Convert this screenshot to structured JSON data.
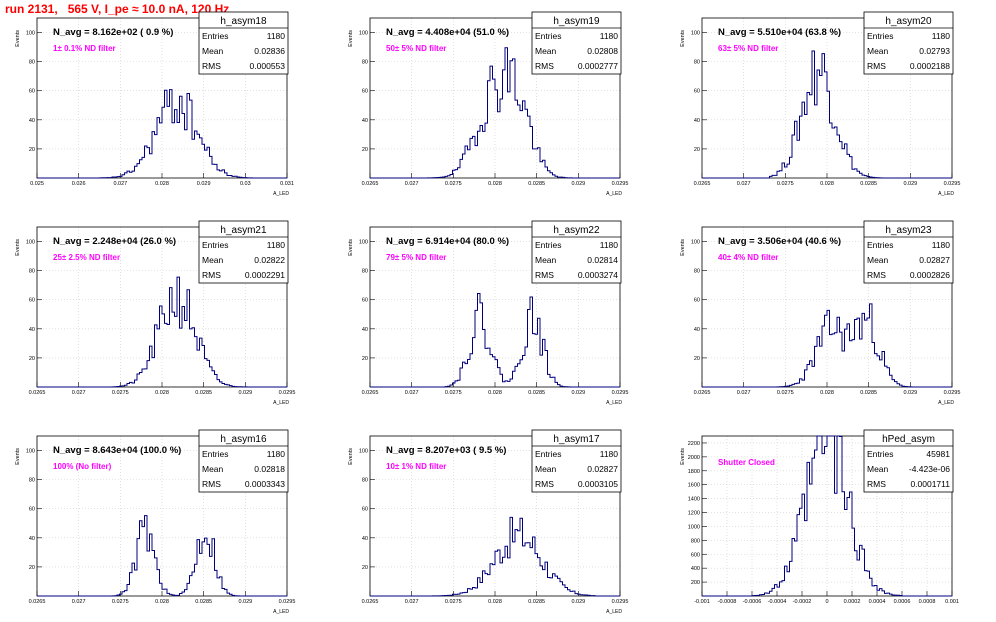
{
  "header": {
    "title": "run 2131,   565 V, I_pe ≈ 10.0 nA, 120 Hz"
  },
  "colors": {
    "histogram": "#00007f",
    "annotation": "#ff00ff",
    "title": "#ff0000"
  },
  "chart_data": [
    {
      "type": "histogram",
      "name": "h_asym18",
      "title": "N_avg = 8.162e+02 ( 0.9 %)",
      "annotation": "1± 0.1% ND filter",
      "stats": {
        "Entries": "1180",
        "Mean": "0.02836",
        "RMS": "0.000553"
      },
      "ylabel": "Events",
      "xlabel": "A_LED",
      "grid": true,
      "xlim": [
        0.025,
        0.031
      ],
      "ylim": [
        0,
        110
      ],
      "yticks": [
        20,
        40,
        60,
        80,
        100
      ],
      "xticks": [
        "0.025",
        "0.026",
        "0.027",
        "0.028",
        "0.029",
        "0.03",
        "0.031"
      ],
      "dist": {
        "peaks": [
          [
            0.02835,
            0.0005,
            52
          ]
        ],
        "range": [
          0.0265,
          0.0302
        ],
        "seed": 18
      }
    },
    {
      "type": "histogram",
      "name": "h_asym19",
      "title": "N_avg = 4.408e+04 (51.0 %)",
      "annotation": "50± 5% ND filter",
      "stats": {
        "Entries": "1180",
        "Mean": "0.02808",
        "RMS": "0.0002777"
      },
      "ylabel": "Events",
      "xlabel": "A_LED",
      "grid": true,
      "xlim": [
        0.0265,
        0.0295
      ],
      "ylim": [
        0,
        110
      ],
      "yticks": [
        20,
        40,
        60,
        80,
        100
      ],
      "xticks": [
        "0.0265",
        "0.027",
        "0.0275",
        "0.028",
        "0.0285",
        "0.029",
        "0.0295"
      ],
      "dist": {
        "peaks": [
          [
            0.02795,
            0.0002,
            48
          ],
          [
            0.02825,
            0.00018,
            50
          ]
        ],
        "range": [
          0.0272,
          0.029
        ],
        "seed": 19
      }
    },
    {
      "type": "histogram",
      "name": "h_asym20",
      "title": "N_avg = 5.510e+04 (63.8 %)",
      "annotation": "63± 5% ND filter",
      "stats": {
        "Entries": "1180",
        "Mean": "0.02793",
        "RMS": "0.0002188"
      },
      "ylabel": "Events",
      "xlabel": "A_LED",
      "grid": true,
      "xlim": [
        0.0265,
        0.0295
      ],
      "ylim": [
        0,
        110
      ],
      "yticks": [
        20,
        40,
        60,
        80,
        100
      ],
      "xticks": [
        "0.0265",
        "0.027",
        "0.0275",
        "0.028",
        "0.0285",
        "0.029",
        "0.0295"
      ],
      "dist": {
        "peaks": [
          [
            0.0279,
            0.0002,
            75
          ]
        ],
        "range": [
          0.0273,
          0.0287
        ],
        "seed": 20
      }
    },
    {
      "type": "histogram",
      "name": "h_asym21",
      "title": "N_avg = 2.248e+04 (26.0 %)",
      "annotation": "25± 2.5% ND filter",
      "stats": {
        "Entries": "1180",
        "Mean": "0.02822",
        "RMS": "0.0002291"
      },
      "ylabel": "Events",
      "xlabel": "A_LED",
      "grid": true,
      "xlim": [
        0.0265,
        0.0295
      ],
      "ylim": [
        0,
        110
      ],
      "yticks": [
        20,
        40,
        60,
        80,
        100
      ],
      "xticks": [
        "0.0265",
        "0.027",
        "0.0275",
        "0.028",
        "0.0285",
        "0.029",
        "0.0295"
      ],
      "dist": {
        "peaks": [
          [
            0.02818,
            0.00022,
            62
          ]
        ],
        "range": [
          0.0274,
          0.0291
        ],
        "seed": 21
      }
    },
    {
      "type": "histogram",
      "name": "h_asym22",
      "title": "N_avg = 6.914e+04 (80.0 %)",
      "annotation": "79± 5% ND filter",
      "stats": {
        "Entries": "1180",
        "Mean": "0.02814",
        "RMS": "0.0003274"
      },
      "ylabel": "Events",
      "xlabel": "A_LED",
      "grid": true,
      "xlim": [
        0.0265,
        0.0295
      ],
      "ylim": [
        0,
        110
      ],
      "yticks": [
        20,
        40,
        60,
        80,
        100
      ],
      "xticks": [
        "0.0265",
        "0.027",
        "0.0275",
        "0.028",
        "0.0285",
        "0.029",
        "0.0295"
      ],
      "dist": {
        "peaks": [
          [
            0.02782,
            0.00013,
            48
          ],
          [
            0.02845,
            0.00012,
            48
          ]
        ],
        "range": [
          0.0274,
          0.029
        ],
        "seed": 22
      }
    },
    {
      "type": "histogram",
      "name": "h_asym23",
      "title": "N_avg = 3.506e+04 (40.6 %)",
      "annotation": "40± 4% ND filter",
      "stats": {
        "Entries": "1180",
        "Mean": "0.02827",
        "RMS": "0.0002826"
      },
      "ylabel": "Events",
      "xlabel": "A_LED",
      "grid": true,
      "xlim": [
        0.0265,
        0.0295
      ],
      "ylim": [
        0,
        110
      ],
      "yticks": [
        20,
        40,
        60,
        80,
        100
      ],
      "xticks": [
        "0.0265",
        "0.027",
        "0.0275",
        "0.028",
        "0.0285",
        "0.029",
        "0.0295"
      ],
      "dist": {
        "peaks": [
          [
            0.02805,
            0.00018,
            40
          ],
          [
            0.02848,
            0.00015,
            44
          ]
        ],
        "range": [
          0.0274,
          0.0293
        ],
        "seed": 23
      }
    },
    {
      "type": "histogram",
      "name": "h_asym16",
      "title": "N_avg = 8.643e+04 (100.0 %)",
      "annotation": "100% (No filter)",
      "stats": {
        "Entries": "1180",
        "Mean": "0.02818",
        "RMS": "0.0003343"
      },
      "ylabel": "Events",
      "xlabel": "A_LED",
      "grid": true,
      "xlim": [
        0.0265,
        0.0295
      ],
      "ylim": [
        0,
        110
      ],
      "yticks": [
        20,
        40,
        60,
        80,
        100
      ],
      "xticks": [
        "0.0265",
        "0.027",
        "0.0275",
        "0.028",
        "0.0285",
        "0.029",
        "0.0295"
      ],
      "dist": {
        "peaks": [
          [
            0.0278,
            0.00011,
            44
          ],
          [
            0.02852,
            0.00011,
            45
          ]
        ],
        "range": [
          0.0273,
          0.029
        ],
        "seed": 16
      }
    },
    {
      "type": "histogram",
      "name": "h_asym17",
      "title": "N_avg = 8.207e+03 ( 9.5 %)",
      "annotation": "10± 1% ND filter",
      "stats": {
        "Entries": "1180",
        "Mean": "0.02827",
        "RMS": "0.0003105"
      },
      "ylabel": "Events",
      "xlabel": "A_LED",
      "grid": true,
      "xlim": [
        0.0265,
        0.0295
      ],
      "ylim": [
        0,
        110
      ],
      "yticks": [
        20,
        40,
        60,
        80,
        100
      ],
      "xticks": [
        "0.0265",
        "0.027",
        "0.0275",
        "0.028",
        "0.0285",
        "0.029",
        "0.0295"
      ],
      "dist": {
        "peaks": [
          [
            0.02828,
            0.00028,
            42
          ]
        ],
        "range": [
          0.0272,
          0.0292
        ],
        "seed": 17
      }
    },
    {
      "type": "histogram",
      "name": "hPed_asym",
      "title": "",
      "annotation": "Shutter Closed",
      "stats": {
        "Entries": "45981",
        "Mean": "-4.423e-06",
        "RMS": "0.0001711"
      },
      "ylabel": "Events",
      "xlabel": "",
      "grid": true,
      "xlim": [
        -0.001,
        0.001
      ],
      "ylim": [
        0,
        2300
      ],
      "yticks": [
        200,
        400,
        600,
        800,
        1000,
        1200,
        1400,
        1600,
        1800,
        2000,
        2200
      ],
      "xticks": [
        "-0.001",
        "-0.0008",
        "-0.0006",
        "-0.0004",
        "-0.0002",
        "0",
        "0.0002",
        "0.0004",
        "0.0006",
        "0.0008",
        "0.001"
      ],
      "dist": {
        "peaks": [
          [
            0.0,
            0.000171,
            2180
          ]
        ],
        "range": [
          -0.0006,
          0.0006
        ],
        "seed": 99
      }
    }
  ]
}
